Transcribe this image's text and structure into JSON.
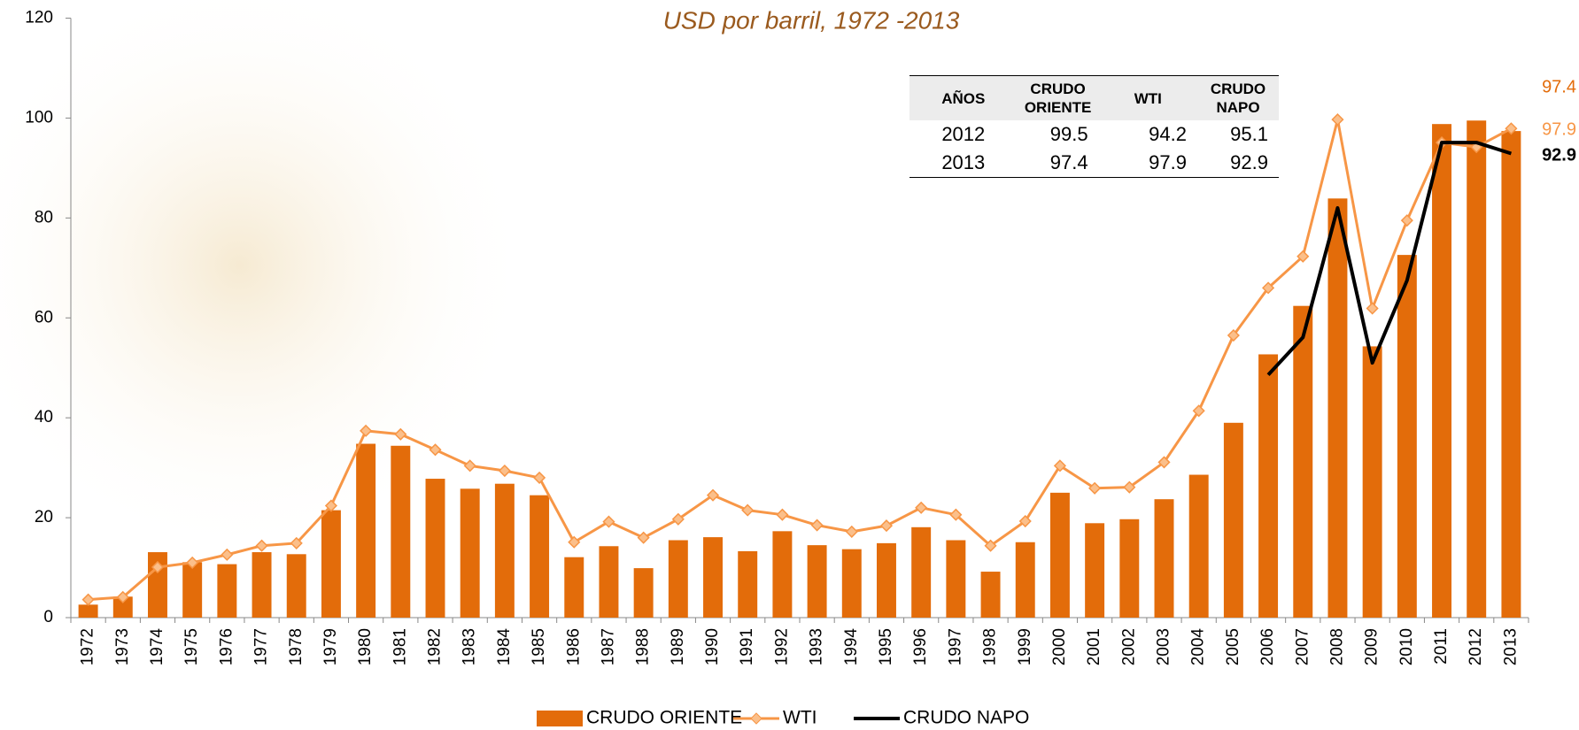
{
  "chart_data": {
    "type": "bar_line",
    "title": "USD por barril, 1972 -2013",
    "categories": [
      "1972",
      "1973",
      "1974",
      "1975",
      "1976",
      "1977",
      "1978",
      "1979",
      "1980",
      "1981",
      "1982",
      "1983",
      "1984",
      "1985",
      "1986",
      "1987",
      "1988",
      "1989",
      "1990",
      "1991",
      "1992",
      "1993",
      "1994",
      "1995",
      "1996",
      "1997",
      "1998",
      "1999",
      "2000",
      "2001",
      "2002",
      "2003",
      "2004",
      "2005",
      "2006",
      "2007",
      "2008",
      "2009",
      "2010",
      "2011",
      "2012",
      "2013"
    ],
    "series": [
      {
        "name": "CRUDO ORIENTE",
        "type": "bar",
        "color": "#e36c0a",
        "values": [
          2.6,
          4.2,
          13.1,
          11.1,
          10.7,
          13.1,
          12.7,
          21.5,
          34.8,
          34.4,
          27.8,
          25.8,
          26.8,
          24.5,
          12.1,
          14.3,
          9.9,
          15.5,
          16.1,
          13.3,
          17.3,
          14.5,
          13.7,
          14.9,
          18.1,
          15.5,
          9.2,
          15.1,
          25.0,
          18.9,
          19.7,
          23.7,
          28.6,
          39.0,
          52.7,
          62.4,
          83.9,
          54.3,
          72.6,
          98.8,
          99.5,
          97.4
        ]
      },
      {
        "name": "WTI",
        "type": "line",
        "color": "#f79646",
        "values": [
          3.6,
          4.1,
          10.1,
          11.0,
          12.6,
          14.4,
          14.9,
          22.4,
          37.4,
          36.7,
          33.6,
          30.4,
          29.4,
          28.0,
          15.1,
          19.2,
          16.0,
          19.7,
          24.5,
          21.5,
          20.6,
          18.5,
          17.2,
          18.4,
          22.0,
          20.6,
          14.4,
          19.3,
          30.4,
          25.9,
          26.1,
          31.1,
          41.4,
          56.5,
          66.0,
          72.3,
          99.7,
          61.9,
          79.5,
          95.1,
          94.2,
          97.9
        ]
      },
      {
        "name": "CRUDO NAPO",
        "type": "line",
        "color": "#000000",
        "values": [
          null,
          null,
          null,
          null,
          null,
          null,
          null,
          null,
          null,
          null,
          null,
          null,
          null,
          null,
          null,
          null,
          null,
          null,
          null,
          null,
          null,
          null,
          null,
          null,
          null,
          null,
          null,
          null,
          null,
          null,
          null,
          null,
          null,
          null,
          48.6,
          56.1,
          82.0,
          51.0,
          67.5,
          95.1,
          95.1,
          92.9
        ]
      }
    ],
    "ylim": [
      0,
      120
    ],
    "yticks": [
      0,
      20,
      40,
      60,
      80,
      100,
      120
    ],
    "table": {
      "columns": [
        "AÑOS",
        "CRUDO ORIENTE",
        "WTI",
        "CRUDO NAPO"
      ],
      "rows": [
        [
          "2012",
          "99.5",
          "94.2",
          "95.1"
        ],
        [
          "2013",
          "97.4",
          "97.9",
          "92.9"
        ]
      ]
    }
  }
}
